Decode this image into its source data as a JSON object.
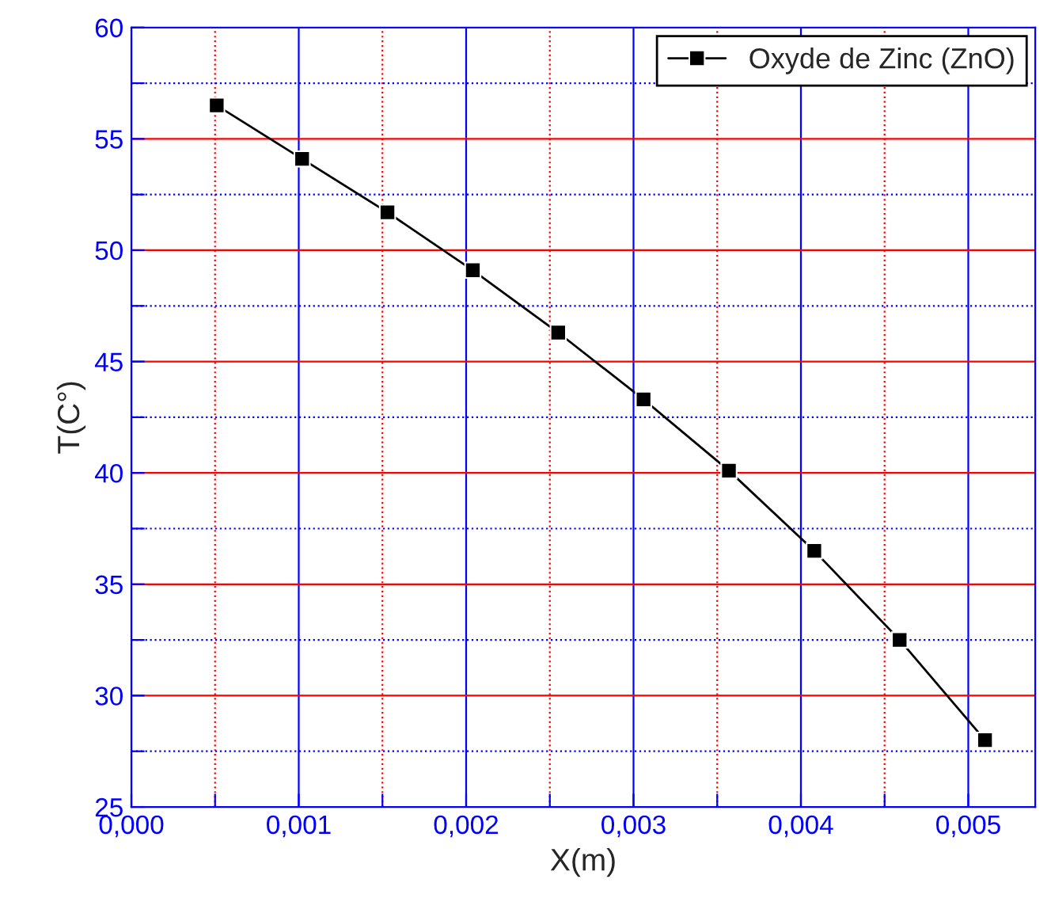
{
  "chart_data": {
    "type": "line",
    "xlabel": "X(m)",
    "ylabel": "T(C°)",
    "x": [
      0.00051,
      0.00102,
      0.00153,
      0.00204,
      0.00255,
      0.00306,
      0.00357,
      0.00408,
      0.00459,
      0.0051
    ],
    "series": [
      {
        "name": "Oxyde de Zinc (ZnO)",
        "color": "#000000",
        "values": [
          56.5,
          54.1,
          51.7,
          49.1,
          46.3,
          43.3,
          40.1,
          36.5,
          32.5,
          28.0
        ]
      }
    ],
    "xlim": [
      0,
      0.0054
    ],
    "xticks": [
      {
        "value": 0,
        "label": "0,000"
      },
      {
        "value": 0.0005,
        "label": null
      },
      {
        "value": 0.001,
        "label": "0,001"
      },
      {
        "value": 0.0015,
        "label": null
      },
      {
        "value": 0.002,
        "label": "0,002"
      },
      {
        "value": 0.0025,
        "label": null
      },
      {
        "value": 0.003,
        "label": "0,003"
      },
      {
        "value": 0.0035,
        "label": null
      },
      {
        "value": 0.004,
        "label": "0,004"
      },
      {
        "value": 0.0045,
        "label": null
      },
      {
        "value": 0.005,
        "label": "0,005"
      }
    ],
    "ylim": [
      25,
      60
    ],
    "yticks": [
      25,
      {
        "value": 27.5,
        "label": null
      },
      30,
      {
        "value": 32.5,
        "label": null
      },
      35,
      {
        "value": 37.5,
        "label": null
      },
      40,
      {
        "value": 42.5,
        "label": null
      },
      45,
      {
        "value": 47.5,
        "label": null
      },
      50,
      {
        "value": 52.5,
        "label": null
      },
      55,
      {
        "value": 57.5,
        "label": null
      },
      60
    ],
    "grid": true,
    "legend": "top right",
    "marker": "square",
    "line_style": "solid"
  }
}
